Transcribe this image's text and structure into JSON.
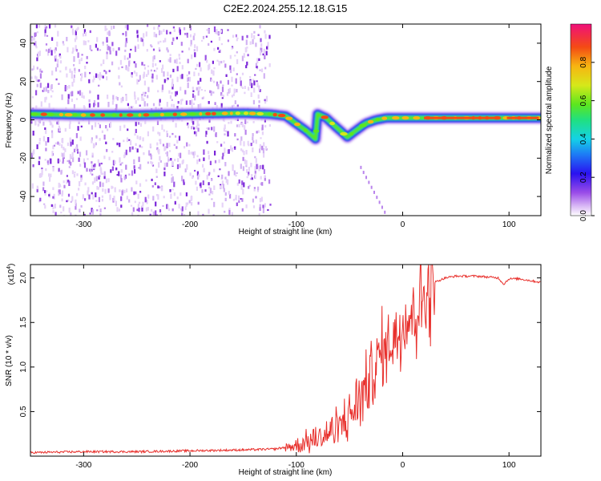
{
  "title": "C2E2.2024.255.12.18.G15",
  "chart_data": [
    {
      "type": "heatmap",
      "xlabel": "Height of straight line (km)",
      "ylabel": "Frequency (Hz)",
      "xlim": [
        -350,
        130
      ],
      "ylim": [
        -50,
        50
      ],
      "xticks": [
        "-300",
        "-200",
        "-100",
        "0",
        "100"
      ],
      "yticks": [
        "40",
        "20",
        "0",
        "-20",
        "-40"
      ],
      "colorbar": {
        "label": "Normalized spectral amplitude",
        "range": [
          0,
          1
        ],
        "ticks": [
          "0.0",
          "0.2",
          "0.4",
          "0.6",
          "0.8"
        ]
      },
      "ridge_frequency_hz": [
        [
          -350,
          3
        ],
        [
          -300,
          2.5
        ],
        [
          -250,
          2.5
        ],
        [
          -200,
          3
        ],
        [
          -150,
          3.5
        ],
        [
          -125,
          3
        ],
        [
          -110,
          2
        ],
        [
          -100,
          -2
        ],
        [
          -90,
          -6
        ],
        [
          -82,
          -10
        ],
        [
          -80,
          3
        ],
        [
          -72,
          1
        ],
        [
          -60,
          -5
        ],
        [
          -52,
          -9
        ],
        [
          -45,
          -6
        ],
        [
          -35,
          -2
        ],
        [
          -25,
          0
        ],
        [
          -15,
          1
        ],
        [
          0,
          1
        ],
        [
          50,
          1
        ],
        [
          100,
          1
        ],
        [
          130,
          1
        ]
      ],
      "noise_region_km": [
        -350,
        -125
      ]
    },
    {
      "type": "line",
      "xlabel": "Height of straight line (km)",
      "ylabel": "SNR (10 * v/v)",
      "y_multiplier": "(x10^4)",
      "xlim": [
        -350,
        130
      ],
      "ylim": [
        0,
        2.15
      ],
      "xticks": [
        "-300",
        "-200",
        "-100",
        "0",
        "100"
      ],
      "yticks": [
        "0.5",
        "1.0",
        "1.5",
        "2.0"
      ],
      "series": [
        {
          "color": "#e8302c",
          "x": [
            -350,
            -300,
            -250,
            -200,
            -150,
            -120,
            -100,
            -90,
            -80,
            -70,
            -60,
            -50,
            -40,
            -30,
            -20,
            -10,
            0,
            10,
            20,
            30,
            40,
            50,
            60,
            70,
            80,
            90,
            95,
            100,
            110,
            120,
            130
          ],
          "y": [
            0.04,
            0.05,
            0.05,
            0.06,
            0.07,
            0.08,
            0.12,
            0.16,
            0.2,
            0.25,
            0.32,
            0.45,
            0.65,
            0.9,
            1.15,
            1.3,
            1.5,
            1.65,
            1.8,
            1.95,
            2.0,
            2.02,
            2.02,
            2.02,
            2.01,
            2.0,
            1.93,
            1.99,
            1.99,
            1.97,
            1.95
          ]
        }
      ]
    }
  ]
}
